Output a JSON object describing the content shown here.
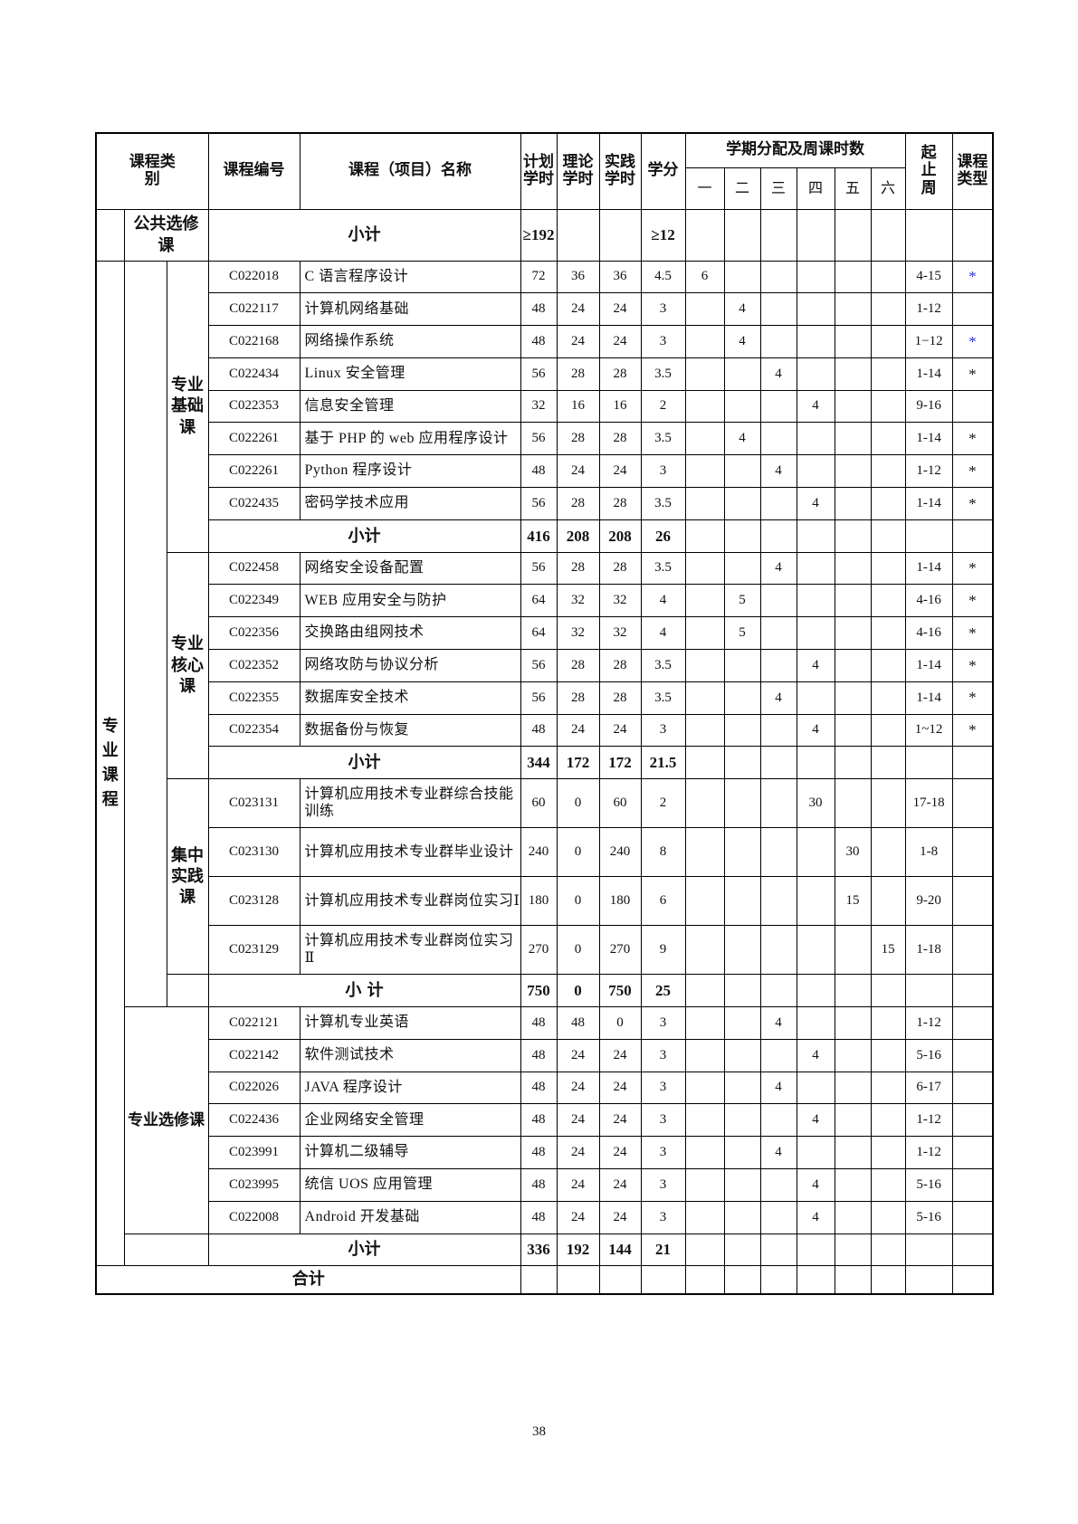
{
  "header": {
    "category": "课程类别",
    "code": "课程编号",
    "name": "课程（项目）名称",
    "plan_hours": "计划学时",
    "theory_hours": "理论学时",
    "practice_hours": "实践学时",
    "credits": "学分",
    "semester_group": "学期分配及周课时数",
    "semesters": [
      "一",
      "二",
      "三",
      "四",
      "五",
      "六"
    ],
    "weeks": "起止周",
    "course_type": "课程类型"
  },
  "public_elective": {
    "label": "公共选修课",
    "subtotal_label": "小计",
    "plan": "≥192",
    "theory": "",
    "practice": "",
    "credits": "≥12"
  },
  "major": {
    "label": "专业课程",
    "groups": [
      {
        "label": "专业基础课",
        "courses": [
          {
            "code": "C022018",
            "name": "C 语言程序设计",
            "plan": "72",
            "theory": "36",
            "practice": "36",
            "credits": "4.5",
            "sem": [
              "6",
              "",
              "",
              "",
              "",
              ""
            ],
            "weeks": "4-15",
            "type": "*",
            "type_color": "#2233ee"
          },
          {
            "code": "C022117",
            "name": "计算机网络基础",
            "plan": "48",
            "theory": "24",
            "practice": "24",
            "credits": "3",
            "sem": [
              "",
              "4",
              "",
              "",
              "",
              ""
            ],
            "weeks": "1-12",
            "type": "",
            "type_color": "#111111"
          },
          {
            "code": "C022168",
            "name": "网络操作系统",
            "plan": "48",
            "theory": "24",
            "practice": "24",
            "credits": "3",
            "sem": [
              "",
              "4",
              "",
              "",
              "",
              ""
            ],
            "weeks": "1−12",
            "type": "*",
            "type_color": "#2233ee"
          },
          {
            "code": "C022434",
            "name": "Linux 安全管理",
            "plan": "56",
            "theory": "28",
            "practice": "28",
            "credits": "3.5",
            "sem": [
              "",
              "",
              "4",
              "",
              "",
              ""
            ],
            "weeks": "1-14",
            "type": "*",
            "type_color": "#111111"
          },
          {
            "code": "C022353",
            "name": "信息安全管理",
            "plan": "32",
            "theory": "16",
            "practice": "16",
            "credits": "2",
            "sem": [
              "",
              "",
              "",
              "4",
              "",
              ""
            ],
            "weeks": "9-16",
            "type": "",
            "type_color": "#111111"
          },
          {
            "code": "C022261",
            "name": "基于 PHP 的 web 应用程序设计",
            "plan": "56",
            "theory": "28",
            "practice": "28",
            "credits": "3.5",
            "sem": [
              "",
              "4",
              "",
              "",
              "",
              ""
            ],
            "weeks": "1-14",
            "type": "*",
            "type_color": "#111111"
          },
          {
            "code": "C022261",
            "name": "Python 程序设计",
            "plan": "48",
            "theory": "24",
            "practice": "24",
            "credits": "3",
            "sem": [
              "",
              "",
              "4",
              "",
              "",
              ""
            ],
            "weeks": "1-12",
            "type": "*",
            "type_color": "#111111"
          },
          {
            "code": "C022435",
            "name": "密码学技术应用",
            "plan": "56",
            "theory": "28",
            "practice": "28",
            "credits": "3.5",
            "sem": [
              "",
              "",
              "",
              "4",
              "",
              ""
            ],
            "weeks": "1-14",
            "type": "*",
            "type_color": "#111111"
          }
        ],
        "subtotal": {
          "label": "小计",
          "plan": "416",
          "theory": "208",
          "practice": "208",
          "credits": "26"
        }
      },
      {
        "label": "专业核心课",
        "courses": [
          {
            "code": "C022458",
            "name": "网络安全设备配置",
            "plan": "56",
            "theory": "28",
            "practice": "28",
            "credits": "3.5",
            "sem": [
              "",
              "",
              "4",
              "",
              "",
              ""
            ],
            "weeks": "1-14",
            "type": "*",
            "type_color": "#111111"
          },
          {
            "code": "C022349",
            "name": "WEB 应用安全与防护",
            "plan": "64",
            "theory": "32",
            "practice": "32",
            "credits": "4",
            "sem": [
              "",
              "5",
              "",
              "",
              "",
              ""
            ],
            "weeks": "4-16",
            "type": "*",
            "type_color": "#111111"
          },
          {
            "code": "C022356",
            "name": "交换路由组网技术",
            "plan": "64",
            "theory": "32",
            "practice": "32",
            "credits": "4",
            "sem": [
              "",
              "5",
              "",
              "",
              "",
              ""
            ],
            "weeks": "4-16",
            "type": "*",
            "type_color": "#111111"
          },
          {
            "code": "C022352",
            "name": "网络攻防与协议分析",
            "plan": "56",
            "theory": "28",
            "practice": "28",
            "credits": "3.5",
            "sem": [
              "",
              "",
              "",
              "4",
              "",
              ""
            ],
            "weeks": "1-14",
            "type": "*",
            "type_color": "#111111"
          },
          {
            "code": "C022355",
            "name": "数据库安全技术",
            "plan": "56",
            "theory": "28",
            "practice": "28",
            "credits": "3.5",
            "sem": [
              "",
              "",
              "4",
              "",
              "",
              ""
            ],
            "weeks": "1-14",
            "type": "*",
            "type_color": "#111111"
          },
          {
            "code": "C022354",
            "name": "数据备份与恢复",
            "plan": "48",
            "theory": "24",
            "practice": "24",
            "credits": "3",
            "sem": [
              "",
              "",
              "",
              "4",
              "",
              ""
            ],
            "weeks": "1~12",
            "type": "*",
            "type_color": "#111111"
          }
        ],
        "subtotal": {
          "label": "小计",
          "plan": "344",
          "theory": "172",
          "practice": "172",
          "credits": "21.5"
        }
      },
      {
        "label": "集中实践课",
        "courses": [
          {
            "code": "C023131",
            "name": "计算机应用技术专业群综合技能训练",
            "plan": "60",
            "theory": "0",
            "practice": "60",
            "credits": "2",
            "sem": [
              "",
              "",
              "",
              "30",
              "",
              ""
            ],
            "weeks": "17-18",
            "type": "",
            "type_color": "#111111"
          },
          {
            "code": "C023130",
            "name": "计算机应用技术专业群毕业设计",
            "plan": "240",
            "theory": "0",
            "practice": "240",
            "credits": "8",
            "sem": [
              "",
              "",
              "",
              "",
              "30",
              ""
            ],
            "weeks": "1-8",
            "type": "",
            "type_color": "#111111"
          },
          {
            "code": "C023128",
            "name": "计算机应用技术专业群岗位实习Ⅰ",
            "plan": "180",
            "theory": "0",
            "practice": "180",
            "credits": "6",
            "sem": [
              "",
              "",
              "",
              "",
              "15",
              ""
            ],
            "weeks": "9-20",
            "type": "",
            "type_color": "#111111"
          },
          {
            "code": "C023129",
            "name": "计算机应用技术专业群岗位实习Ⅱ",
            "plan": "270",
            "theory": "0",
            "practice": "270",
            "credits": "9",
            "sem": [
              "",
              "",
              "",
              "",
              "",
              "15"
            ],
            "weeks": "1-18",
            "type": "",
            "type_color": "#111111"
          }
        ],
        "subtotal": {
          "label": "小 计",
          "plan": "750",
          "theory": "0",
          "practice": "750",
          "credits": "25"
        }
      },
      {
        "label": "专业选修课",
        "courses": [
          {
            "code": "C022121",
            "name": "计算机专业英语",
            "plan": "48",
            "theory": "48",
            "practice": "0",
            "credits": "3",
            "sem": [
              "",
              "",
              "4",
              "",
              "",
              ""
            ],
            "weeks": "1-12",
            "type": "",
            "type_color": "#111111"
          },
          {
            "code": "C022142",
            "name": "软件测试技术",
            "plan": "48",
            "theory": "24",
            "practice": "24",
            "credits": "3",
            "sem": [
              "",
              "",
              "",
              "4",
              "",
              ""
            ],
            "weeks": "5-16",
            "type": "",
            "type_color": "#111111"
          },
          {
            "code": "C022026",
            "name": "JAVA 程序设计",
            "plan": "48",
            "theory": "24",
            "practice": "24",
            "credits": "3",
            "sem": [
              "",
              "",
              "4",
              "",
              "",
              ""
            ],
            "weeks": "6-17",
            "type": "",
            "type_color": "#111111"
          },
          {
            "code": "C022436",
            "name": "企业网络安全管理",
            "plan": "48",
            "theory": "24",
            "practice": "24",
            "credits": "3",
            "sem": [
              "",
              "",
              "",
              "4",
              "",
              ""
            ],
            "weeks": "1-12",
            "type": "",
            "type_color": "#111111"
          },
          {
            "code": "C023991",
            "name": "计算机二级辅导",
            "plan": "48",
            "theory": "24",
            "practice": "24",
            "credits": "3",
            "sem": [
              "",
              "",
              "4",
              "",
              "",
              ""
            ],
            "weeks": "1-12",
            "type": "",
            "type_color": "#111111"
          },
          {
            "code": "C023995",
            "name": "统信 UOS 应用管理",
            "plan": "48",
            "theory": "24",
            "practice": "24",
            "credits": "3",
            "sem": [
              "",
              "",
              "",
              "4",
              "",
              ""
            ],
            "weeks": "5-16",
            "type": "",
            "type_color": "#111111"
          },
          {
            "code": "C022008",
            "name": "Android 开发基础",
            "plan": "48",
            "theory": "24",
            "practice": "24",
            "credits": "3",
            "sem": [
              "",
              "",
              "",
              "4",
              "",
              ""
            ],
            "weeks": "5-16",
            "type": "",
            "type_color": "#111111"
          }
        ],
        "subtotal": {
          "label": "小计",
          "plan": "336",
          "theory": "192",
          "practice": "144",
          "credits": "21"
        }
      }
    ]
  },
  "total": {
    "label": "合计"
  },
  "page_number": "38"
}
